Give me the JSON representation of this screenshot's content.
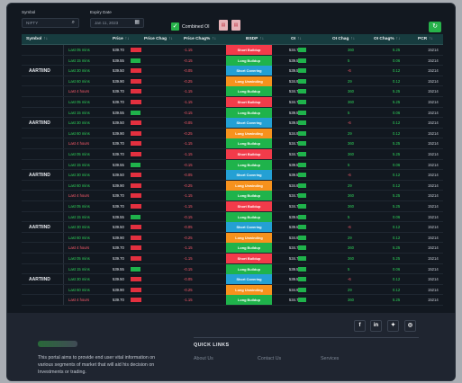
{
  "toolbar": {
    "symbol_label": "Symbol",
    "symbol_value": "NIFTY",
    "expiry_label": "Expiry Date",
    "expiry_value": "Jan 11, 2023",
    "combined_oi_label": "Combined OI"
  },
  "table": {
    "headers": [
      "Symbol",
      "Price",
      "Price Chag",
      "Price Chag%",
      "BSDP",
      "OI",
      "OI Chag",
      "OI Chag%",
      "PCR"
    ],
    "groups": [
      {
        "symbol": "AARTIIND"
      },
      {
        "symbol": "AARTIIND"
      },
      {
        "symbol": "AARTIIND"
      },
      {
        "symbol": "AARTIIND"
      },
      {
        "symbol": "AARTIIND"
      }
    ],
    "row_template": [
      {
        "interval": "Last 05 mins",
        "interval_color": "green",
        "price": "539.70",
        "bar": "red",
        "price_chg": "-1.15",
        "price_pct": "-0.21",
        "bsdp": "Short Buildup",
        "bsdp_color": "#f23b4a",
        "oi": "534.70",
        "oi_chg": "360",
        "oi_pct": "5.25",
        "pcr": "15214"
      },
      {
        "interval": "Last 15 mins",
        "interval_color": "green",
        "price": "539.55",
        "bar": "green",
        "price_chg": "-0.15",
        "price_pct": "0.03",
        "bsdp": "Long Buildup",
        "bsdp_color": "#1fb34b",
        "oi": "539.55",
        "oi_chg": "5",
        "oi_pct": "0.06",
        "pcr": "15214"
      },
      {
        "interval": "Last 30 mins",
        "interval_color": "green",
        "price": "539.50",
        "bar": "red",
        "price_chg": "-0.05",
        "price_pct": "-0.15",
        "bsdp": "Short Covering",
        "bsdp_color": "#24a0d4",
        "oi": "539.50",
        "oi_chg": "-6",
        "oi_pct": "0.12",
        "pcr": "15214"
      },
      {
        "interval": "Last 60 mins",
        "interval_color": "green",
        "price": "539.90",
        "bar": "red",
        "price_chg": "-0.25",
        "price_pct": "-0.05",
        "bsdp": "Long Unwinding",
        "bsdp_color": "#f7921d",
        "oi": "534.90",
        "oi_chg": "29",
        "oi_pct": "0.12",
        "pcr": "15214"
      },
      {
        "interval": "Last 4 hours",
        "interval_color": "red",
        "price": "539.70",
        "bar": "red",
        "price_chg": "-1.15",
        "price_pct": "-0.21",
        "bsdp": "Long Buildup",
        "bsdp_color": "#1fb34b",
        "oi": "534.70",
        "oi_chg": "360",
        "oi_pct": "5.25",
        "pcr": "15214"
      }
    ]
  },
  "footer": {
    "social": [
      "f",
      "in",
      "✦",
      "◎"
    ],
    "description": "This portal aims to provide end user vital information on various segments of market that will aid his decision on Investments or trading.",
    "quick_links_title": "QUICK LINKS",
    "links": [
      "About Us",
      "Contact Us",
      "Services"
    ]
  },
  "colors": {
    "accent": "#27b24a",
    "header_bg": "#173c3f",
    "negative": "#ff5c6c",
    "positive": "#2fd35a"
  }
}
